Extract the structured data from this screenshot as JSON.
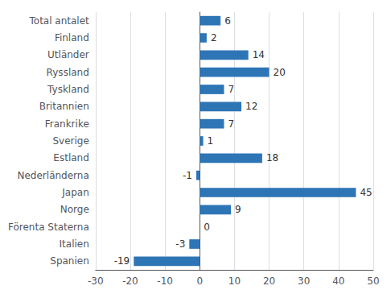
{
  "chart_data": {
    "type": "bar",
    "orientation": "horizontal",
    "categories": [
      "Spanien",
      "Italien",
      "Förenta Staterna",
      "Norge",
      "Japan",
      "Nederländerna",
      "Estland",
      "Sverige",
      "Frankrike",
      "Britannien",
      "Tyskland",
      "Ryssland",
      "Utländer",
      "Finland",
      "Total antalet"
    ],
    "values": [
      -19,
      -3,
      0,
      9,
      45,
      -1,
      18,
      1,
      7,
      12,
      7,
      20,
      14,
      2,
      6
    ],
    "color": "#2e75b6",
    "xlim": [
      -30,
      50
    ],
    "xticks": [
      -30,
      -20,
      -10,
      0,
      10,
      20,
      30,
      40,
      50
    ],
    "grid": true,
    "data_labels": true
  }
}
